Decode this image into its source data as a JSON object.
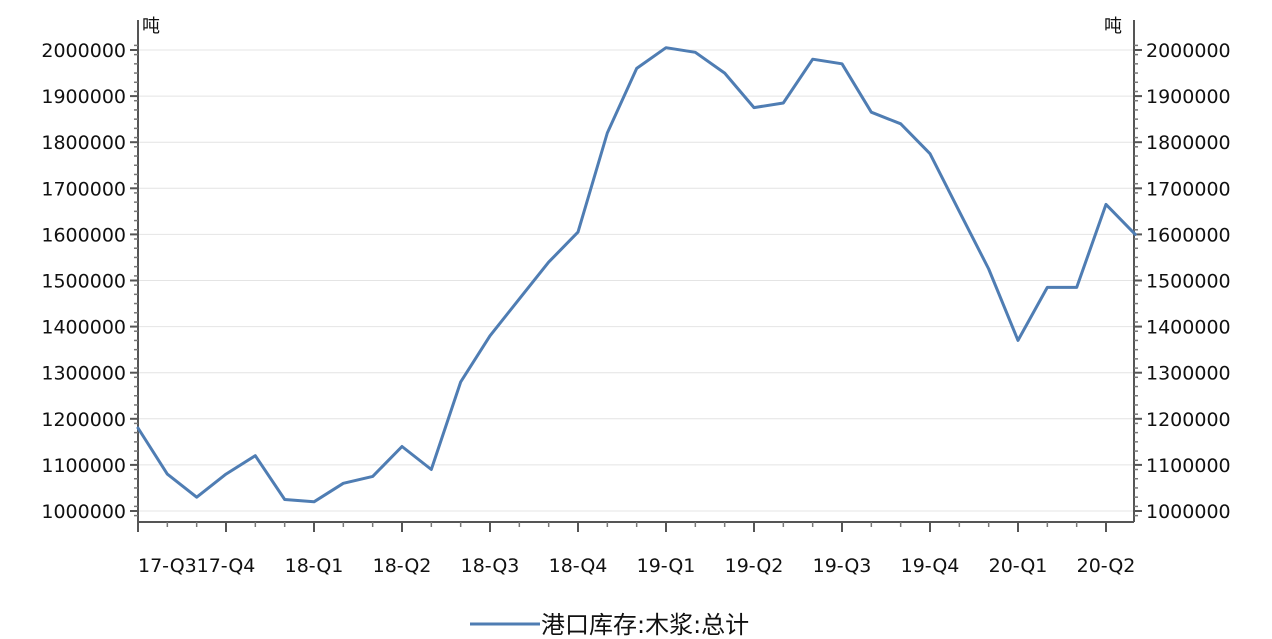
{
  "chart_data": {
    "type": "line",
    "y_unit_left": "吨",
    "y_unit_right": "吨",
    "ylim": [
      980000,
      2020000
    ],
    "y_ticks": [
      1000000,
      1100000,
      1200000,
      1300000,
      1400000,
      1500000,
      1600000,
      1700000,
      1800000,
      1900000,
      2000000
    ],
    "y_tick_labels": [
      "1000000",
      "1100000",
      "1200000",
      "1300000",
      "1400000",
      "1500000",
      "1600000",
      "1700000",
      "1800000",
      "1900000",
      "2000000"
    ],
    "x_tick_labels": [
      "17-Q3",
      "17-Q4",
      "18-Q1",
      "18-Q2",
      "18-Q3",
      "18-Q4",
      "19-Q1",
      "19-Q2",
      "19-Q3",
      "19-Q4",
      "20-Q1",
      "20-Q2"
    ],
    "grid": "horizontal",
    "legend_position": "bottom-center",
    "series": [
      {
        "name": "港口库存:木浆:总计",
        "color": "#4f7db3",
        "x": [
          "2017-07",
          "2017-08",
          "2017-09",
          "2017-10",
          "2017-11",
          "2017-12",
          "2018-01",
          "2018-02",
          "2018-03",
          "2018-04",
          "2018-05",
          "2018-06",
          "2018-07",
          "2018-08",
          "2018-09",
          "2018-10",
          "2018-11",
          "2018-12",
          "2019-01",
          "2019-02",
          "2019-03",
          "2019-04",
          "2019-05",
          "2019-06",
          "2019-07",
          "2019-08",
          "2019-09",
          "2019-10",
          "2019-11",
          "2019-12",
          "2020-01",
          "2020-02",
          "2020-03",
          "2020-04",
          "2020-05"
        ],
        "values": [
          1180000,
          1080000,
          1030000,
          1080000,
          1120000,
          1025000,
          1020000,
          1060000,
          1075000,
          1140000,
          1090000,
          1280000,
          1380000,
          1460000,
          1540000,
          1605000,
          1820000,
          1960000,
          2005000,
          1995000,
          1950000,
          1875000,
          1885000,
          1980000,
          1970000,
          1865000,
          1840000,
          1775000,
          1650000,
          1525000,
          1370000,
          1485000,
          1485000,
          1665000,
          1600000
        ]
      }
    ]
  }
}
